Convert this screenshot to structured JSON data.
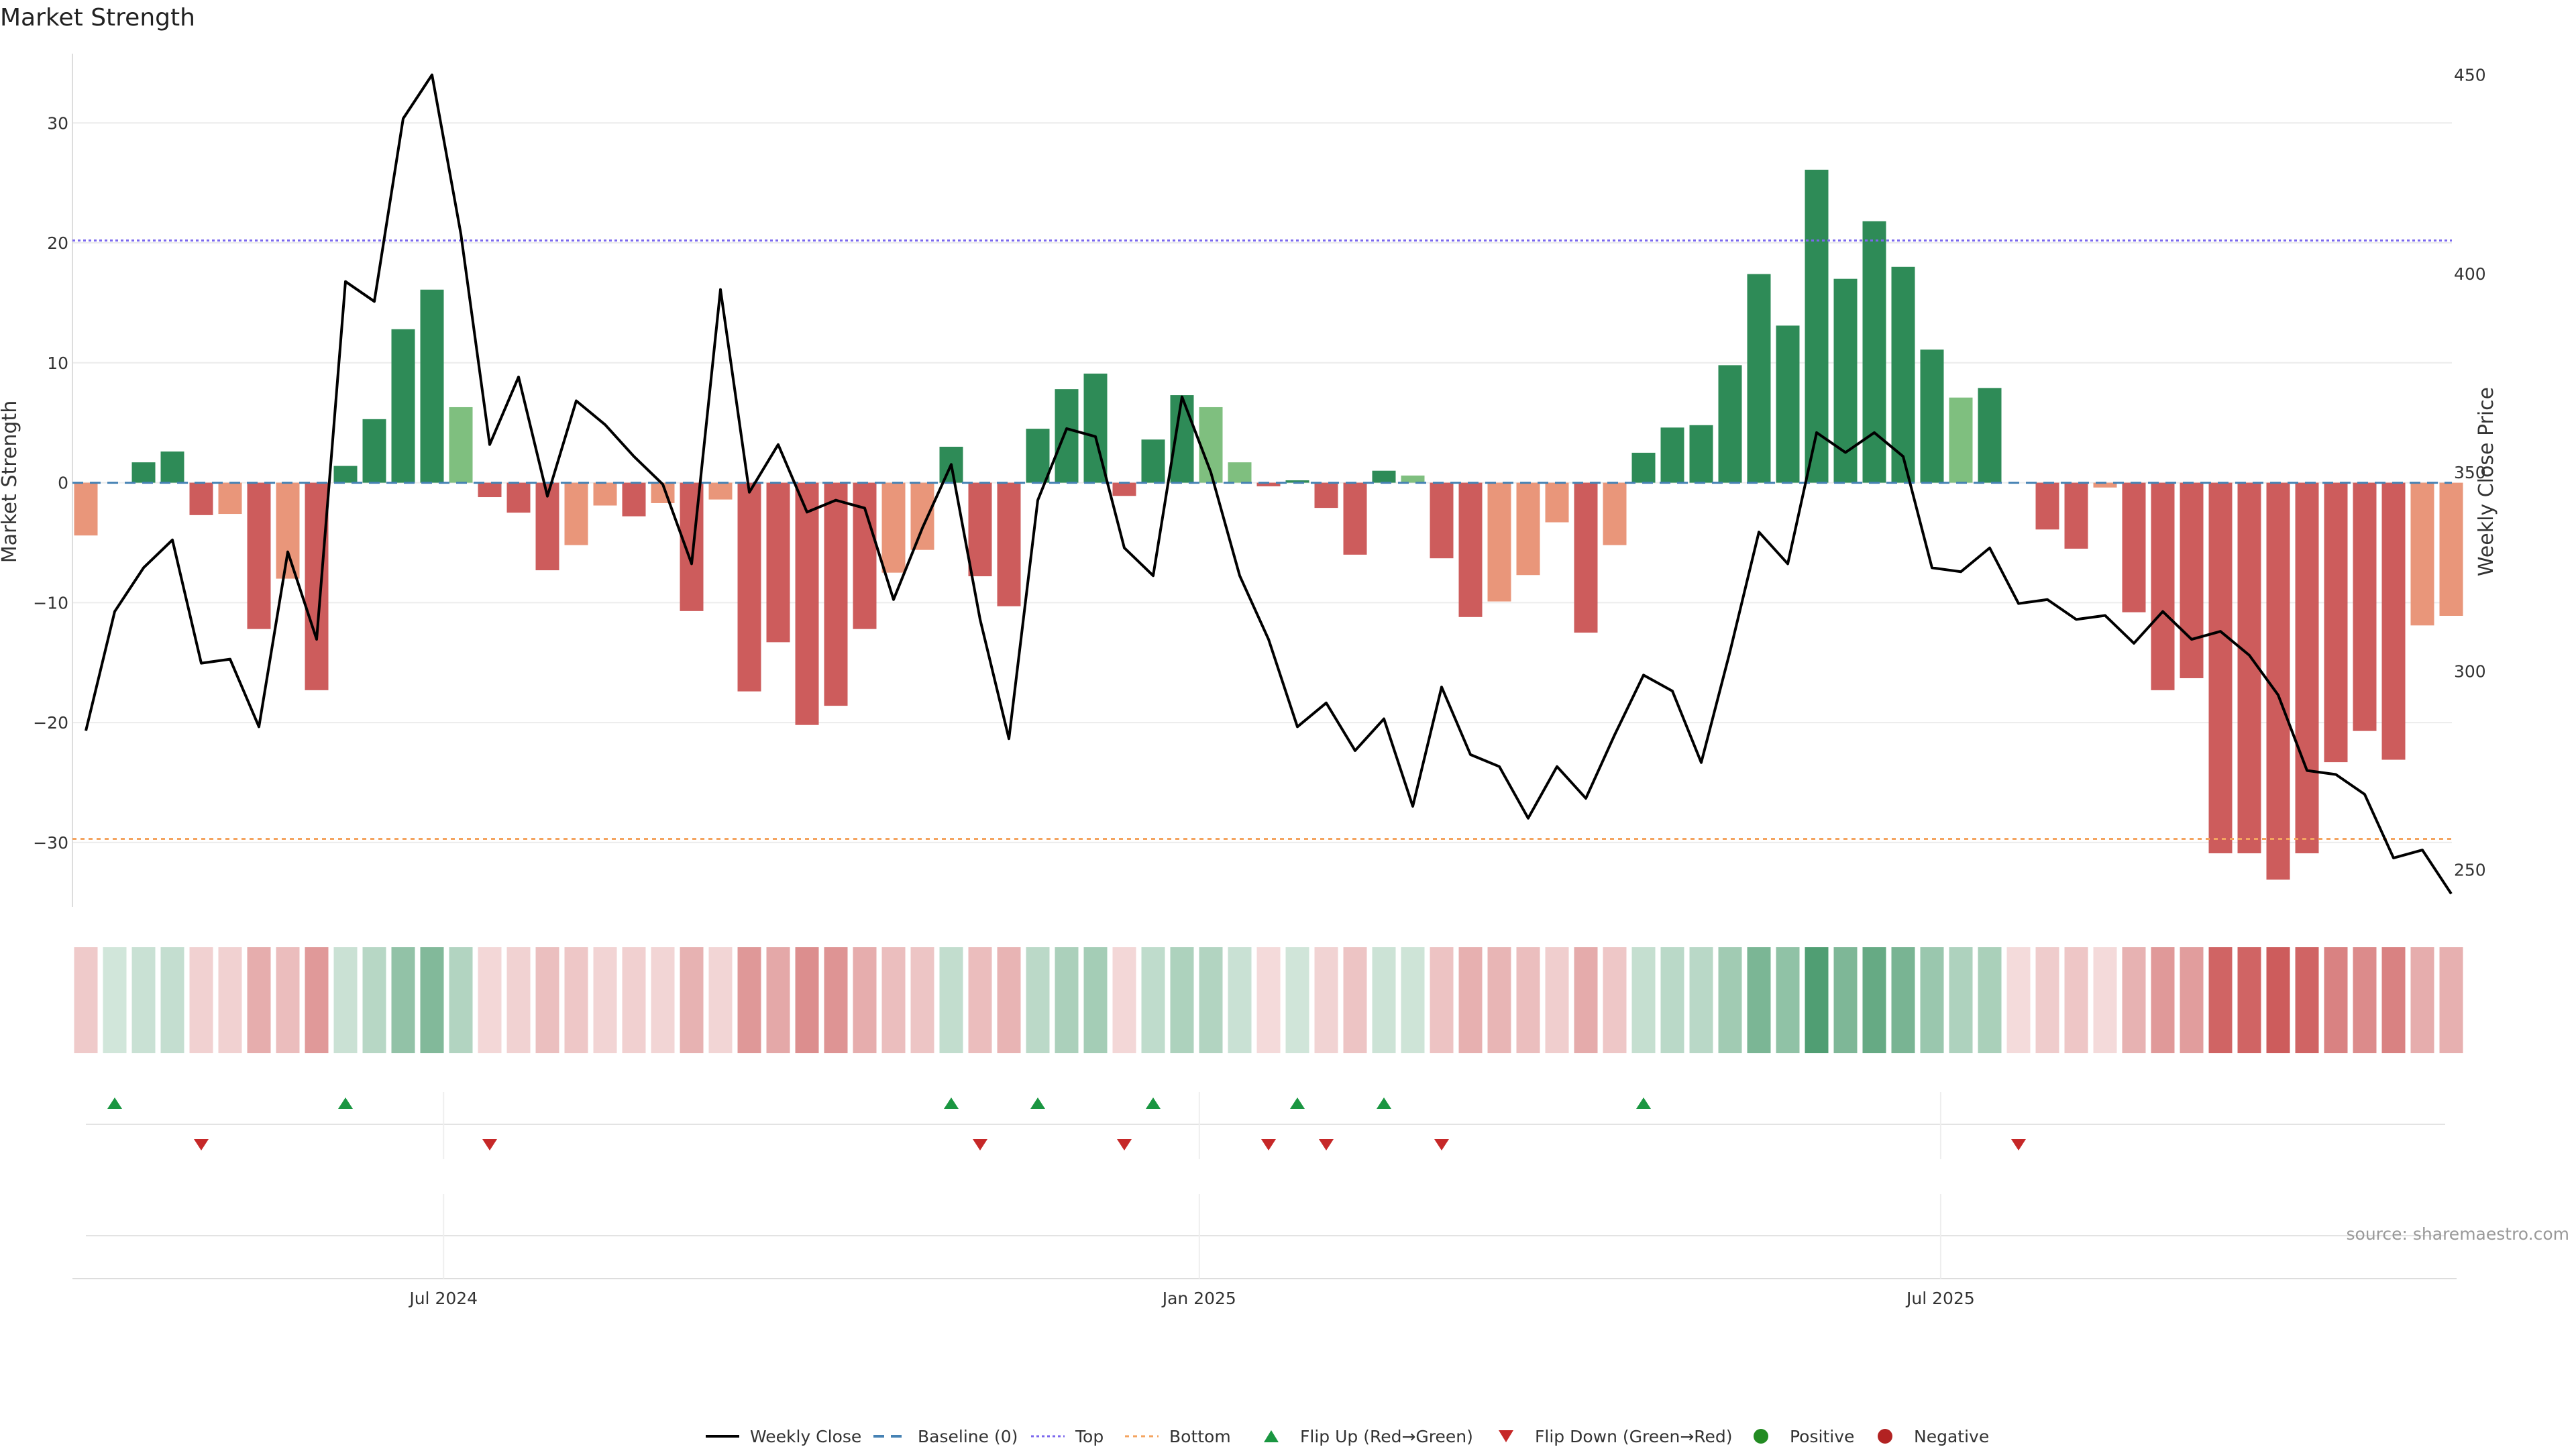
{
  "chart_data": {
    "title": "Market Strength",
    "type": "bar+line",
    "left_axis": {
      "label": "Market Strength",
      "ylim": [
        -35.6,
        36
      ],
      "ticks": [
        30,
        20,
        10,
        0,
        -10,
        -20,
        -30
      ]
    },
    "right_axis": {
      "label": "Weekly Close Price",
      "ylim": [
        240,
        456
      ],
      "ticks": [
        450,
        400,
        350,
        300,
        250
      ]
    },
    "top_line": 20.2,
    "bottom_line": -29.7,
    "x_tick_labels": [
      {
        "label": "Jul 2024",
        "week": 12.4
      },
      {
        "label": "Jan 2025",
        "week": 38.6
      },
      {
        "label": "Jul 2025",
        "week": 64.3
      }
    ],
    "market_strength": [
      -4.4,
      0,
      1.7,
      2.6,
      -2.7,
      -2.6,
      -12.2,
      -8.0,
      -17.3,
      1.4,
      5.3,
      12.8,
      16.1,
      6.3,
      -1.2,
      -2.5,
      -7.3,
      -5.2,
      -1.9,
      -2.8,
      -1.7,
      -10.7,
      -1.4,
      -17.4,
      -13.3,
      -20.2,
      -18.6,
      -12.2,
      -7.5,
      -5.6,
      3.0,
      -7.8,
      -10.3,
      4.5,
      7.8,
      9.1,
      -1.1,
      3.6,
      7.3,
      6.3,
      1.7,
      -0.3,
      0.2,
      -2.1,
      -6.0,
      1.0,
      0.6,
      -6.3,
      -11.2,
      -9.9,
      -7.7,
      -3.3,
      -12.5,
      -5.2,
      2.5,
      4.6,
      4.8,
      9.8,
      17.4,
      13.1,
      26.1,
      17.0,
      21.8,
      18.0,
      11.1,
      7.1,
      7.9,
      0,
      -3.9,
      -5.5,
      -0.4,
      -10.8,
      -17.3,
      -16.3,
      -30.9,
      -30.9,
      -33.1,
      -30.9,
      -23.3,
      -20.7,
      -23.1,
      -11.9,
      -11.1
    ],
    "weekly_close": [
      285,
      315,
      326,
      333,
      302,
      303,
      286,
      330,
      308,
      398,
      393,
      439,
      450,
      410,
      357,
      374,
      344,
      368,
      362,
      354,
      347,
      327,
      396,
      345,
      357,
      340,
      343,
      341,
      318,
      336,
      352,
      313,
      283,
      343,
      361,
      359,
      331,
      324,
      369,
      350,
      324,
      308,
      286,
      292,
      280,
      288,
      266,
      296,
      279,
      276,
      263,
      276,
      268,
      284,
      299,
      295,
      277,
      305,
      335,
      327,
      360,
      355,
      360,
      354,
      326,
      325,
      331,
      317,
      318,
      313,
      314,
      307,
      315,
      308,
      310,
      304,
      294,
      275,
      274,
      269,
      253,
      255,
      244
    ],
    "flip_up_weeks": [
      1,
      9,
      30,
      33,
      37,
      42,
      45,
      54
    ],
    "flip_down_weeks": [
      4,
      14,
      31,
      36,
      41,
      43,
      47,
      67
    ],
    "heat_strip": [
      0,
      1,
      1,
      1,
      0,
      0,
      0,
      0,
      0,
      1,
      1,
      1,
      1,
      1,
      0,
      0,
      0,
      0,
      0,
      0,
      0,
      0,
      0,
      0,
      0,
      0,
      0,
      0,
      0,
      0,
      1,
      0,
      0,
      1,
      1,
      1,
      0,
      1,
      1,
      1,
      1,
      0,
      1,
      0,
      0,
      1,
      1,
      0,
      0,
      0,
      0,
      0,
      0,
      0,
      1,
      1,
      1,
      1,
      1,
      1,
      1,
      1,
      1,
      1,
      1,
      1,
      1,
      0,
      0,
      0,
      0,
      0,
      0,
      0,
      0,
      0,
      0,
      0,
      0,
      0,
      0,
      0,
      0
    ],
    "legend": [
      "Weekly Close",
      "Baseline (0)",
      "Top",
      "Bottom",
      "Flip Up (Red→Green)",
      "Flip Down (Green→Red)",
      "Positive",
      "Negative"
    ],
    "source": "source: sharemaestro.com"
  },
  "colors": {
    "strong_green": "#2e8b57",
    "light_green": "#7fbf7f",
    "strong_red": "#cd5c5c",
    "light_red": "#e9967a",
    "line": "#000000",
    "baseline": "#4682b4",
    "top": "#7b68ee",
    "bottom": "#f4a460",
    "flip_up": "#1a9641",
    "flip_down": "#c62828",
    "positive": "#228b22",
    "negative": "#b22222"
  }
}
